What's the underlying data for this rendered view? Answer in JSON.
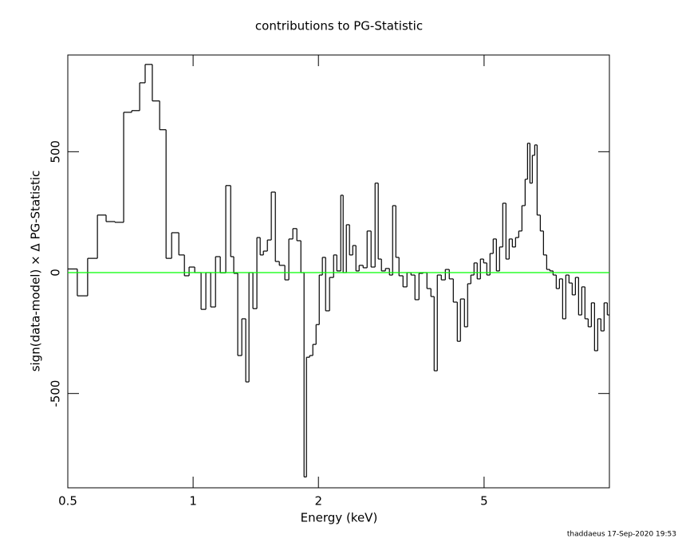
{
  "chart_data": {
    "type": "histogram",
    "title": "contributions to PG-Statistic",
    "x_label": "Energy (keV)",
    "y_label": "sign(data-model) × Δ PG-Statistic",
    "footer": "thaddaeus 17-Sep-2020 19:53",
    "x_scale": "log",
    "xlim": [
      0.5,
      10.0
    ],
    "xticks": [
      0.5,
      1,
      2,
      5
    ],
    "ylim": [
      -890,
      900
    ],
    "yticks": [
      -500,
      0,
      500
    ],
    "color": "#000000",
    "reference_line": {
      "value": 0,
      "color": "#00ff00"
    },
    "bins": [
      0.5,
      0.527,
      0.558,
      0.589,
      0.618,
      0.649,
      0.681,
      0.712,
      0.744,
      0.767,
      0.798,
      0.831,
      0.861,
      0.888,
      0.924,
      0.953,
      0.978,
      1.009,
      1.045,
      1.073,
      1.102,
      1.132,
      1.162,
      1.198,
      1.231,
      1.252,
      1.28,
      1.309,
      1.338,
      1.362,
      1.392,
      1.423,
      1.449,
      1.475,
      1.508,
      1.541,
      1.576,
      1.611,
      1.661,
      1.698,
      1.736,
      1.775,
      1.815,
      1.847,
      1.872,
      1.905,
      1.939,
      1.974,
      2.009,
      2.044,
      2.081,
      2.127,
      2.175,
      2.214,
      2.263,
      2.293,
      2.334,
      2.375,
      2.418,
      2.461,
      2.505,
      2.561,
      2.618,
      2.676,
      2.736,
      2.784,
      2.834,
      2.897,
      2.962,
      3.015,
      3.069,
      3.123,
      3.193,
      3.264,
      3.337,
      3.411,
      3.488,
      3.566,
      3.645,
      3.726,
      3.793,
      3.86,
      3.946,
      4.035,
      4.124,
      4.217,
      4.311,
      4.387,
      4.485,
      4.565,
      4.647,
      4.729,
      4.813,
      4.899,
      4.987,
      5.076,
      5.166,
      5.258,
      5.352,
      5.447,
      5.544,
      5.643,
      5.744,
      5.846,
      5.95,
      6.056,
      6.164,
      6.274,
      6.358,
      6.443,
      6.528,
      6.616,
      6.704,
      6.823,
      6.944,
      7.068,
      7.194,
      7.322,
      7.452,
      7.585,
      7.72,
      7.857,
      7.997,
      8.14,
      8.285,
      8.432,
      8.582,
      8.735,
      8.891,
      9.049,
      9.21,
      9.374,
      9.541,
      9.711,
      9.884,
      10.0
    ],
    "values": [
      15,
      -96,
      59,
      238,
      211,
      208,
      663,
      670,
      785,
      861,
      710,
      591,
      59,
      165,
      73,
      -13,
      23,
      0,
      -152,
      0,
      -142,
      66,
      -1,
      360,
      66,
      -3,
      -343,
      -191,
      -452,
      0,
      -149,
      145,
      73,
      89,
      135,
      333,
      46,
      30,
      -30,
      139,
      182,
      132,
      0,
      -845,
      -350,
      -343,
      -297,
      -215,
      -10,
      63,
      -158,
      -20,
      73,
      7,
      320,
      0,
      198,
      73,
      112,
      7,
      30,
      20,
      172,
      23,
      370,
      56,
      7,
      17,
      -10,
      277,
      63,
      -13,
      -59,
      0,
      -10,
      -112,
      -3,
      0,
      -66,
      -99,
      -406,
      -10,
      -30,
      13,
      -26,
      -122,
      -284,
      -109,
      -224,
      -46,
      -10,
      40,
      -26,
      56,
      40,
      -10,
      79,
      139,
      7,
      106,
      287,
      56,
      139,
      106,
      145,
      172,
      277,
      386,
      535,
      370,
      485,
      528,
      238,
      172,
      73,
      13,
      7,
      -10,
      -66,
      -26,
      -191,
      -10,
      -43,
      -92,
      -20,
      -175,
      -59,
      -191,
      -224,
      -125,
      -323,
      -191,
      -241,
      -125,
      -175
    ]
  }
}
